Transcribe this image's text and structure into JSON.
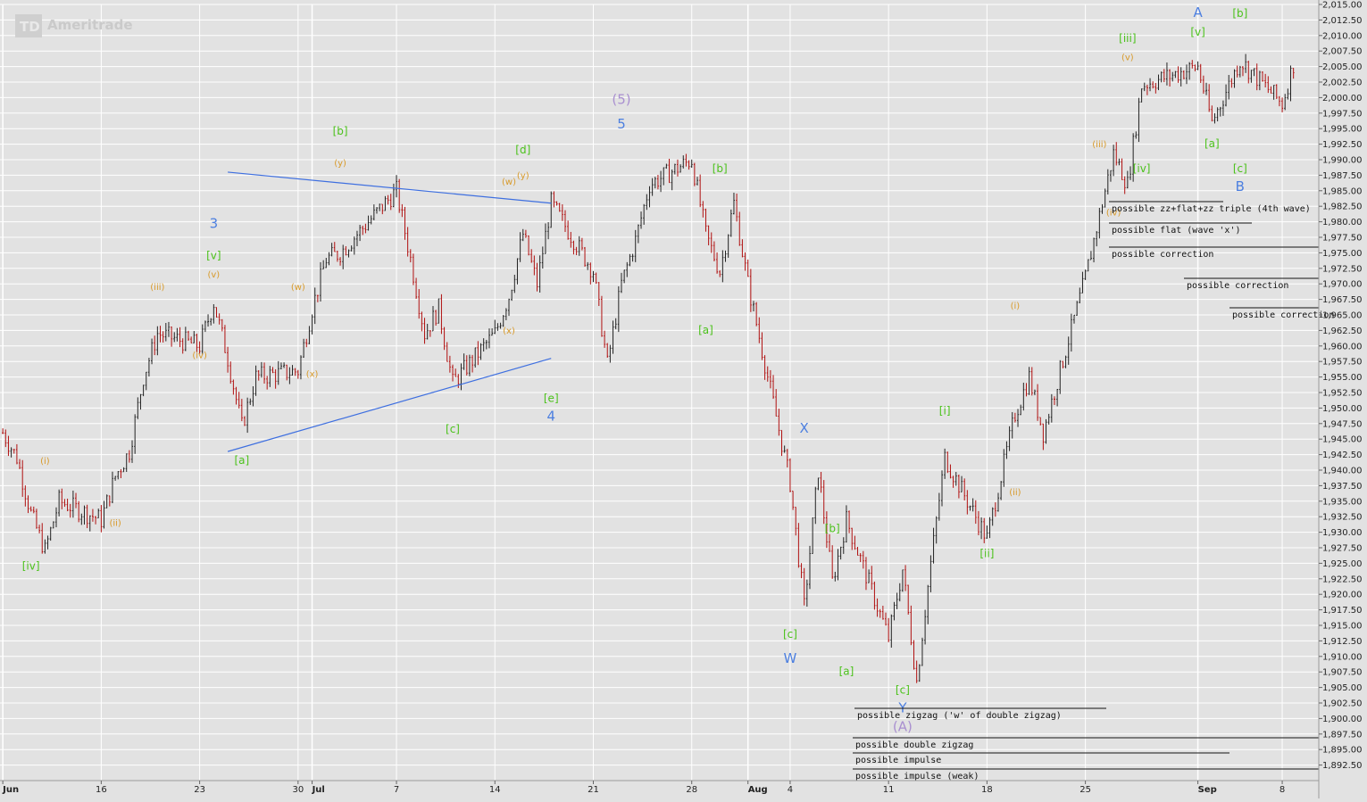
{
  "app": {
    "brand": "Ameritrade",
    "logo_text": "TD"
  },
  "colors": {
    "background": "#e2e2e2",
    "grid": "#ffffff",
    "candle": "#222222",
    "candle_down": "#b01010",
    "wave_blue": "#4c7fe0",
    "wave_green": "#4cc21c",
    "wave_orange": "#d89a2a",
    "wave_purple": "#a98fd0",
    "trendline": "#3e6fe0"
  },
  "chart_data": {
    "type": "line",
    "title": "",
    "xlabel": "",
    "ylabel": "",
    "x_range": [
      "2014-06-09",
      "2014-09-09"
    ],
    "ylim": [
      1890,
      2015
    ],
    "grid": true,
    "price_axis": "right",
    "y_ticks": [
      "1,892.50",
      "1,895.00",
      "1,897.50",
      "1,900.00",
      "1,902.50",
      "1,905.00",
      "1,907.50",
      "1,910.00",
      "1,912.50",
      "1,915.00",
      "1,917.50",
      "1,920.00",
      "1,922.50",
      "1,925.00",
      "1,927.50",
      "1,930.00",
      "1,932.50",
      "1,935.00",
      "1,937.50",
      "1,940.00",
      "1,942.50",
      "1,945.00",
      "1,947.50",
      "1,950.00",
      "1,952.50",
      "1,955.00",
      "1,957.50",
      "1,960.00",
      "1,962.50",
      "1,965.00",
      "1,967.50",
      "1,970.00",
      "1,972.50",
      "1,975.00",
      "1,977.50",
      "1,980.00",
      "1,982.50",
      "1,985.00",
      "1,987.50",
      "1,990.00",
      "1,992.50",
      "1,995.00",
      "1,997.50",
      "2,000.00",
      "2,002.50",
      "2,005.00",
      "2,007.50",
      "2,010.00",
      "2,012.50",
      "2,015.00"
    ],
    "x_ticks": [
      {
        "date": "2014-06-09",
        "label": "Jun",
        "bold": true
      },
      {
        "date": "2014-06-16",
        "label": "16",
        "bold": false
      },
      {
        "date": "2014-06-23",
        "label": "23",
        "bold": false
      },
      {
        "date": "2014-06-30",
        "label": "30",
        "bold": false
      },
      {
        "date": "2014-07-01",
        "label": "Jul",
        "bold": true
      },
      {
        "date": "2014-07-07",
        "label": "7",
        "bold": false
      },
      {
        "date": "2014-07-14",
        "label": "14",
        "bold": false
      },
      {
        "date": "2014-07-21",
        "label": "21",
        "bold": false
      },
      {
        "date": "2014-07-28",
        "label": "28",
        "bold": false
      },
      {
        "date": "2014-08-01",
        "label": "Aug",
        "bold": true
      },
      {
        "date": "2014-08-04",
        "label": "4",
        "bold": false
      },
      {
        "date": "2014-08-11",
        "label": "11",
        "bold": false
      },
      {
        "date": "2014-08-18",
        "label": "18",
        "bold": false
      },
      {
        "date": "2014-08-25",
        "label": "25",
        "bold": false
      },
      {
        "date": "2014-09-02",
        "label": "Sep",
        "bold": true
      },
      {
        "date": "2014-09-08",
        "label": "8",
        "bold": false
      }
    ],
    "series": [
      {
        "values": [
          {
            "x": "2014-06-09",
            "y": 1946
          },
          {
            "x": "2014-06-10",
            "y": 1942
          },
          {
            "x": "2014-06-11",
            "y": 1933
          },
          {
            "x": "2014-06-12",
            "y": 1927
          },
          {
            "x": "2014-06-13",
            "y": 1935
          },
          {
            "x": "2014-06-16",
            "y": 1932
          },
          {
            "x": "2014-06-17",
            "y": 1939
          },
          {
            "x": "2014-06-18",
            "y": 1943
          },
          {
            "x": "2014-06-19",
            "y": 1955
          },
          {
            "x": "2014-06-20",
            "y": 1962
          },
          {
            "x": "2014-06-23",
            "y": 1960
          },
          {
            "x": "2014-06-24",
            "y": 1967
          },
          {
            "x": "2014-06-25",
            "y": 1958
          },
          {
            "x": "2014-06-26",
            "y": 1947
          },
          {
            "x": "2014-06-27",
            "y": 1955
          },
          {
            "x": "2014-06-30",
            "y": 1956
          },
          {
            "x": "2014-07-01",
            "y": 1966
          },
          {
            "x": "2014-07-02",
            "y": 1974
          },
          {
            "x": "2014-07-03",
            "y": 1975
          },
          {
            "x": "2014-07-07",
            "y": 1985
          },
          {
            "x": "2014-07-08",
            "y": 1974
          },
          {
            "x": "2014-07-09",
            "y": 1962
          },
          {
            "x": "2014-07-10",
            "y": 1966
          },
          {
            "x": "2014-07-11",
            "y": 1954
          },
          {
            "x": "2014-07-14",
            "y": 1962
          },
          {
            "x": "2014-07-15",
            "y": 1968
          },
          {
            "x": "2014-07-16",
            "y": 1978
          },
          {
            "x": "2014-07-17",
            "y": 1970
          },
          {
            "x": "2014-07-18",
            "y": 1983
          },
          {
            "x": "2014-07-21",
            "y": 1972
          },
          {
            "x": "2014-07-22",
            "y": 1957
          },
          {
            "x": "2014-07-23",
            "y": 1970
          },
          {
            "x": "2014-07-24",
            "y": 1977
          },
          {
            "x": "2014-07-25",
            "y": 1986
          },
          {
            "x": "2014-07-28",
            "y": 1990
          },
          {
            "x": "2014-07-29",
            "y": 1978
          },
          {
            "x": "2014-07-30",
            "y": 1972
          },
          {
            "x": "2014-07-31",
            "y": 1983
          },
          {
            "x": "2014-08-01",
            "y": 1970
          },
          {
            "x": "2014-08-04",
            "y": 1938
          },
          {
            "x": "2014-08-05",
            "y": 1918
          },
          {
            "x": "2014-08-06",
            "y": 1940
          },
          {
            "x": "2014-08-07",
            "y": 1922
          },
          {
            "x": "2014-08-08",
            "y": 1932
          },
          {
            "x": "2014-08-11",
            "y": 1913
          },
          {
            "x": "2014-08-12",
            "y": 1924
          },
          {
            "x": "2014-08-13",
            "y": 1906
          },
          {
            "x": "2014-08-14",
            "y": 1925
          },
          {
            "x": "2014-08-15",
            "y": 1942
          },
          {
            "x": "2014-08-18",
            "y": 1929
          },
          {
            "x": "2014-08-19",
            "y": 1939
          },
          {
            "x": "2014-08-20",
            "y": 1949
          },
          {
            "x": "2014-08-21",
            "y": 1955
          },
          {
            "x": "2014-08-22",
            "y": 1946
          },
          {
            "x": "2014-08-25",
            "y": 1971
          },
          {
            "x": "2014-08-26",
            "y": 1981
          },
          {
            "x": "2014-08-27",
            "y": 1991
          },
          {
            "x": "2014-08-28",
            "y": 1986
          },
          {
            "x": "2014-08-29",
            "y": 2002
          },
          {
            "x": "2014-09-02",
            "y": 2005
          },
          {
            "x": "2014-09-03",
            "y": 1996
          },
          {
            "x": "2014-09-04",
            "y": 2001
          },
          {
            "x": "2014-09-05",
            "y": 2006
          },
          {
            "x": "2014-09-08",
            "y": 1999
          },
          {
            "x": "2014-09-09",
            "y": 2007
          }
        ]
      }
    ],
    "wave_labels": [
      {
        "text": "[iv]",
        "x": "2014-06-11",
        "y": 1924,
        "color": "green"
      },
      {
        "text": "(i)",
        "x": "2014-06-12",
        "y": 1941,
        "color": "orange"
      },
      {
        "text": "(ii)",
        "x": "2014-06-17",
        "y": 1931,
        "color": "orange"
      },
      {
        "text": "(iii)",
        "x": "2014-06-20",
        "y": 1969,
        "color": "orange"
      },
      {
        "text": "(iv)",
        "x": "2014-06-23",
        "y": 1958,
        "color": "orange"
      },
      {
        "text": "(v)",
        "x": "2014-06-24",
        "y": 1971,
        "color": "orange"
      },
      {
        "text": "[v]",
        "x": "2014-06-24",
        "y": 1974,
        "color": "green"
      },
      {
        "text": "3",
        "x": "2014-06-24",
        "y": 1979,
        "color": "blue"
      },
      {
        "text": "[a]",
        "x": "2014-06-26",
        "y": 1941,
        "color": "green"
      },
      {
        "text": "(w)",
        "x": "2014-06-30",
        "y": 1969,
        "color": "orange"
      },
      {
        "text": "(x)",
        "x": "2014-07-01",
        "y": 1955,
        "color": "orange"
      },
      {
        "text": "(y)",
        "x": "2014-07-03",
        "y": 1989,
        "color": "orange"
      },
      {
        "text": "[b]",
        "x": "2014-07-03",
        "y": 1994,
        "color": "green"
      },
      {
        "text": "[c]",
        "x": "2014-07-11",
        "y": 1946,
        "color": "green"
      },
      {
        "text": "(x)",
        "x": "2014-07-15",
        "y": 1962,
        "color": "orange"
      },
      {
        "text": "(w)",
        "x": "2014-07-15",
        "y": 1986,
        "color": "orange"
      },
      {
        "text": "(y)",
        "x": "2014-07-16",
        "y": 1987,
        "color": "orange"
      },
      {
        "text": "[d]",
        "x": "2014-07-16",
        "y": 1991,
        "color": "green"
      },
      {
        "text": "[e]",
        "x": "2014-07-18",
        "y": 1951,
        "color": "green"
      },
      {
        "text": "4",
        "x": "2014-07-18",
        "y": 1948,
        "color": "blue"
      },
      {
        "text": "(5)",
        "x": "2014-07-23",
        "y": 1999,
        "color": "purple"
      },
      {
        "text": "5",
        "x": "2014-07-23",
        "y": 1995,
        "color": "blue"
      },
      {
        "text": "[a]",
        "x": "2014-07-29",
        "y": 1962,
        "color": "green"
      },
      {
        "text": "[b]",
        "x": "2014-07-30",
        "y": 1988,
        "color": "green"
      },
      {
        "text": "X",
        "x": "2014-08-05",
        "y": 1946,
        "color": "blue"
      },
      {
        "text": "[c]",
        "x": "2014-08-04",
        "y": 1913,
        "color": "green"
      },
      {
        "text": "W",
        "x": "2014-08-04",
        "y": 1909,
        "color": "blue"
      },
      {
        "text": "[b]",
        "x": "2014-08-07",
        "y": 1930,
        "color": "green"
      },
      {
        "text": "[a]",
        "x": "2014-08-08",
        "y": 1907,
        "color": "green"
      },
      {
        "text": "[c]",
        "x": "2014-08-12",
        "y": 1904,
        "color": "green"
      },
      {
        "text": "Y",
        "x": "2014-08-12",
        "y": 1901,
        "color": "blue"
      },
      {
        "text": "(A)",
        "x": "2014-08-12",
        "y": 1898,
        "color": "purple"
      },
      {
        "text": "[i]",
        "x": "2014-08-15",
        "y": 1949,
        "color": "green"
      },
      {
        "text": "[ii]",
        "x": "2014-08-18",
        "y": 1926,
        "color": "green"
      },
      {
        "text": "(i)",
        "x": "2014-08-20",
        "y": 1966,
        "color": "orange"
      },
      {
        "text": "(ii)",
        "x": "2014-08-20",
        "y": 1936,
        "color": "orange"
      },
      {
        "text": "(iii)",
        "x": "2014-08-26",
        "y": 1992,
        "color": "orange"
      },
      {
        "text": "(iv)",
        "x": "2014-08-27",
        "y": 1981,
        "color": "orange"
      },
      {
        "text": "(v)",
        "x": "2014-08-28",
        "y": 2006,
        "color": "orange"
      },
      {
        "text": "[iii]",
        "x": "2014-08-28",
        "y": 2009,
        "color": "green"
      },
      {
        "text": "[iv]",
        "x": "2014-08-29",
        "y": 1988,
        "color": "green"
      },
      {
        "text": "[v]",
        "x": "2014-09-02",
        "y": 2010,
        "color": "green"
      },
      {
        "text": "A",
        "x": "2014-09-02",
        "y": 2013,
        "color": "blue"
      },
      {
        "text": "[a]",
        "x": "2014-09-03",
        "y": 1992,
        "color": "green"
      },
      {
        "text": "[b]",
        "x": "2014-09-05",
        "y": 2013,
        "color": "green"
      },
      {
        "text": "[c]",
        "x": "2014-09-05",
        "y": 1988,
        "color": "green"
      },
      {
        "text": "B",
        "x": "2014-09-05",
        "y": 1985,
        "color": "blue"
      }
    ],
    "notes": [
      "possible zz+flat+zz triple (4th wave)",
      "possible flat (wave 'x')",
      "possible correction",
      "possible correction",
      "possible correction",
      "possible zigzag ('w' of double zigzag)",
      "possible double zigzag",
      "possible impulse",
      "possible impulse (weak)"
    ],
    "trendlines": [
      {
        "from": {
          "x": "2014-06-25",
          "y": 1988
        },
        "to": {
          "x": "2014-07-18",
          "y": 1983
        }
      },
      {
        "from": {
          "x": "2014-06-25",
          "y": 1943
        },
        "to": {
          "x": "2014-07-18",
          "y": 1958
        }
      }
    ]
  }
}
